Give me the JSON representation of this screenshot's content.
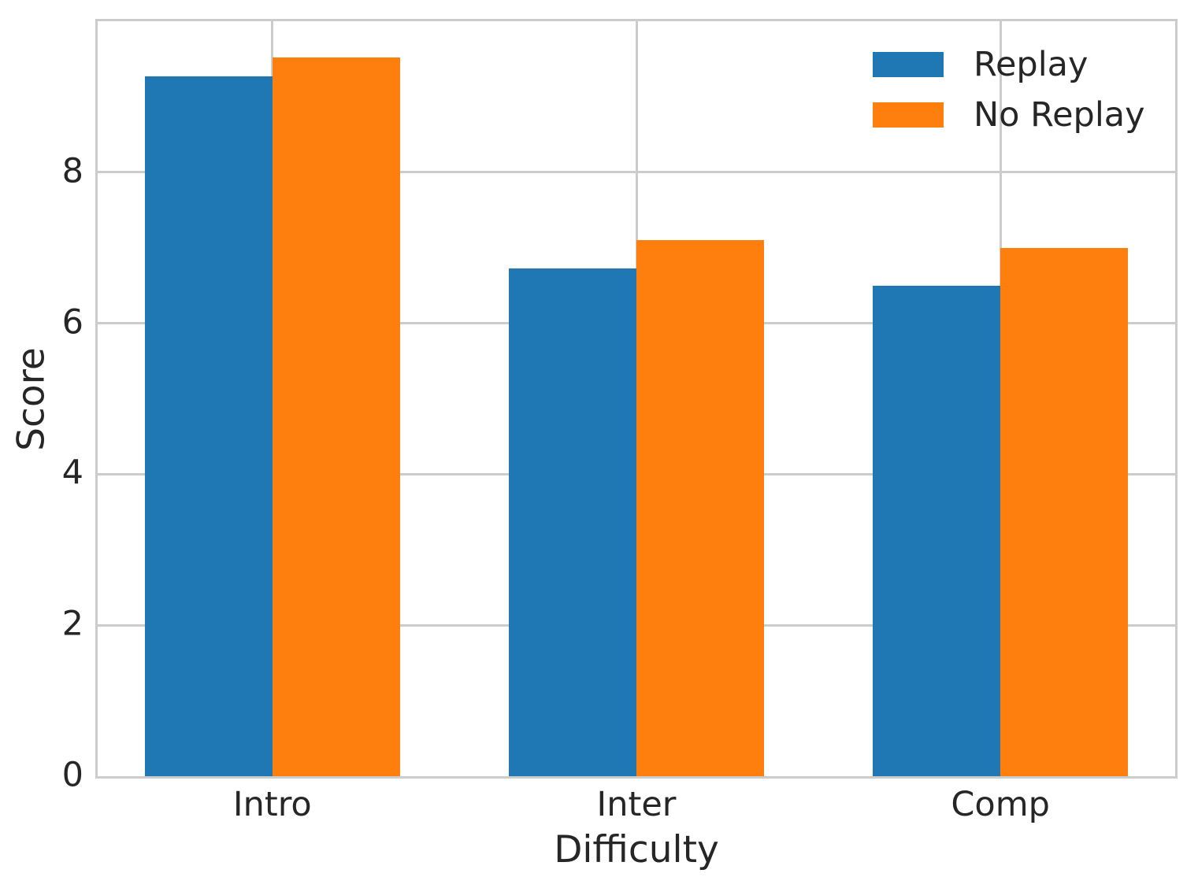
{
  "chart_data": {
    "type": "bar",
    "title": "",
    "categories": [
      "Intro",
      "Inter",
      "Comp"
    ],
    "series": [
      {
        "name": "Replay",
        "color": "#1f77b4",
        "values": [
          9.27,
          6.73,
          6.5
        ]
      },
      {
        "name": "No Replay",
        "color": "#ff7f0e",
        "values": [
          9.52,
          7.1,
          7.0
        ]
      }
    ],
    "xlabel": "Difficulty",
    "ylabel": "Score",
    "ylim": [
      0,
      10
    ],
    "yticks": [
      0,
      2,
      4,
      6,
      8
    ],
    "xlim": [
      -0.48,
      2.48
    ],
    "bar_width": 0.35,
    "grid": true,
    "legend_position": "upper right",
    "colors": {
      "grid": "#cccccc",
      "spine": "#cccccc",
      "text": "#262626",
      "background": "#ffffff"
    }
  }
}
